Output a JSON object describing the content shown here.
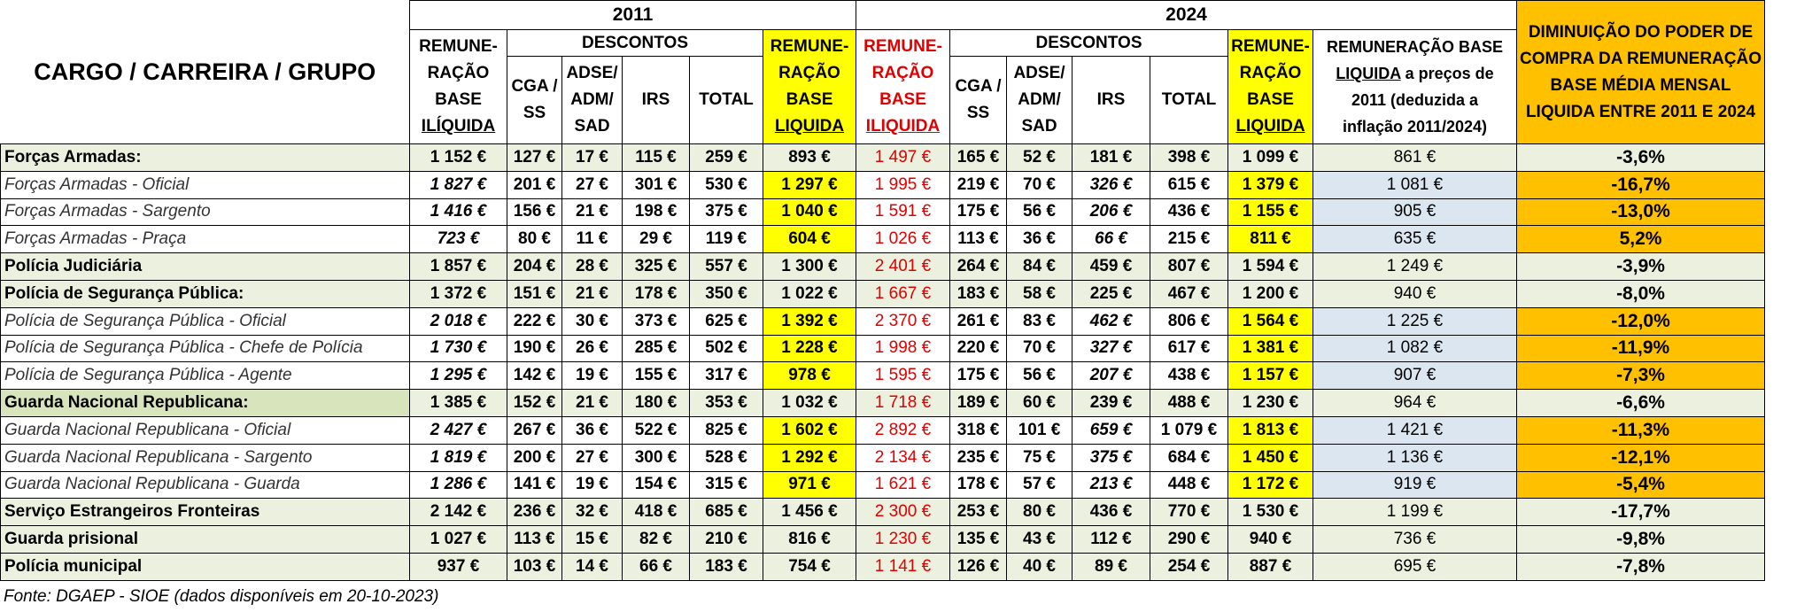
{
  "header": {
    "cargo": "CARGO / CARREIRA / GRUPO",
    "year_2011": "2011",
    "year_2024": "2024",
    "diminuicao": "DIMINUIÇÃO DO PODER DE COMPRA DA REMUNERAÇÃO BASE MÉDIA MENSAL LIQUIDA ENTRE 2011 E 2024",
    "remun_2011": [
      "REMUNE-",
      "RAÇÃO",
      "BASE",
      "ILÍQUIDA"
    ],
    "descontos_2011": "DESCONTOS",
    "cga_2011": [
      "CGA /",
      "SS"
    ],
    "adse_2011": [
      "ADSE/",
      "ADM/",
      "SAD"
    ],
    "irs_2011": "IRS",
    "total_2011": "TOTAL",
    "liq_2011": [
      "REMUNE-",
      "RAÇÃO",
      "BASE",
      "LIQUIDA"
    ],
    "remun_2024": [
      "REMUNE-",
      "RAÇÃO",
      "BASE",
      "ILIQUIDA"
    ],
    "descontos_2024": "DESCONTOS",
    "cga_2024": [
      "CGA /",
      "SS"
    ],
    "adse_2024": [
      "ADSE/",
      "ADM/",
      "SAD"
    ],
    "irs_2024": "IRS",
    "total_2024": "TOTAL",
    "liq_2024": [
      "REMUNE-",
      "RAÇÃO",
      "BASE",
      "LIQUIDA"
    ],
    "base_precos": [
      "REMUNERAÇÃO BASE",
      "LIQUIDA",
      " a preços de",
      "2011 (deduzida a",
      "inflação 2011/2024)"
    ]
  },
  "rows": [
    {
      "name": "Forças Armadas:",
      "type": "group",
      "v": [
        "1 152 €",
        "127 €",
        "17 €",
        "115 €",
        "259 €",
        "893 €",
        "1 497 €",
        "165 €",
        "52 €",
        "181 €",
        "398 €",
        "1 099 €",
        "861 €",
        "-3,6%"
      ]
    },
    {
      "name": "Forças Armadas - Oficial",
      "type": "sub",
      "v": [
        "1 827 €",
        "201 €",
        "27 €",
        "301 €",
        "530 €",
        "1 297 €",
        "1 995 €",
        "219 €",
        "70 €",
        "326 €",
        "615 €",
        "1 379 €",
        "1 081 €",
        "-16,7%"
      ]
    },
    {
      "name": "Forças Armadas - Sargento",
      "type": "sub",
      "v": [
        "1 416 €",
        "156 €",
        "21 €",
        "198 €",
        "375 €",
        "1 040 €",
        "1 591 €",
        "175 €",
        "56 €",
        "206 €",
        "436 €",
        "1 155 €",
        "905 €",
        "-13,0%"
      ]
    },
    {
      "name": "Forças Armadas - Praça",
      "type": "sub",
      "v": [
        "723 €",
        "80 €",
        "11 €",
        "29 €",
        "119 €",
        "604 €",
        "1 026 €",
        "113 €",
        "36 €",
        "66 €",
        "215 €",
        "811 €",
        "635 €",
        "5,2%"
      ]
    },
    {
      "name": "Polícia Judiciária",
      "type": "plain",
      "v": [
        "1 857 €",
        "204 €",
        "28 €",
        "325 €",
        "557 €",
        "1 300 €",
        "2 401 €",
        "264 €",
        "84 €",
        "459 €",
        "807 €",
        "1 594 €",
        "1 249 €",
        "-3,9%"
      ]
    },
    {
      "name": "Polícia de Segurança Pública:",
      "type": "group",
      "v": [
        "1 372 €",
        "151 €",
        "21 €",
        "178 €",
        "350 €",
        "1 022 €",
        "1 667 €",
        "183 €",
        "58 €",
        "225 €",
        "467 €",
        "1 200 €",
        "940 €",
        "-8,0%"
      ]
    },
    {
      "name": "Polícia de Segurança Pública - Oficial",
      "type": "sub",
      "v": [
        "2 018 €",
        "222 €",
        "30 €",
        "373 €",
        "625 €",
        "1 392 €",
        "2 370 €",
        "261 €",
        "83 €",
        "462 €",
        "806 €",
        "1 564 €",
        "1 225 €",
        "-12,0%"
      ]
    },
    {
      "name": "Polícia de Segurança Pública - Chefe de Polícia",
      "type": "sub",
      "v": [
        "1 730 €",
        "190 €",
        "26 €",
        "285 €",
        "502 €",
        "1 228 €",
        "1 998 €",
        "220 €",
        "70 €",
        "327 €",
        "617 €",
        "1 381 €",
        "1 082 €",
        "-11,9%"
      ]
    },
    {
      "name": "Polícia de Segurança Pública - Agente",
      "type": "sub",
      "v": [
        "1 295 €",
        "142 €",
        "19 €",
        "155 €",
        "317 €",
        "978 €",
        "1 595 €",
        "175 €",
        "56 €",
        "207 €",
        "438 €",
        "1 157 €",
        "907 €",
        "-7,3%"
      ]
    },
    {
      "name": "Guarda Nacional Republicana:",
      "type": "group",
      "v": [
        "1 385 €",
        "152 €",
        "21 €",
        "180 €",
        "353 €",
        "1 032 €",
        "1 718 €",
        "189 €",
        "60 €",
        "239 €",
        "488 €",
        "1 230 €",
        "964 €",
        "-6,6%"
      ]
    },
    {
      "name": "Guarda Nacional Republicana - Oficial",
      "type": "sub",
      "v": [
        "2 427 €",
        "267 €",
        "36 €",
        "522 €",
        "825 €",
        "1 602 €",
        "2 892 €",
        "318 €",
        "101 €",
        "659 €",
        "1 079 €",
        "1 813 €",
        "1 421 €",
        "-11,3%"
      ]
    },
    {
      "name": "Guarda Nacional Republicana - Sargento",
      "type": "sub",
      "v": [
        "1 819 €",
        "200 €",
        "27 €",
        "300 €",
        "528 €",
        "1 292 €",
        "2 134 €",
        "235 €",
        "75 €",
        "375 €",
        "684 €",
        "1 450 €",
        "1 136 €",
        "-12,1%"
      ]
    },
    {
      "name": "Guarda Nacional Republicana - Guarda",
      "type": "sub",
      "v": [
        "1 286 €",
        "141 €",
        "19 €",
        "154 €",
        "315 €",
        "971 €",
        "1 621 €",
        "178 €",
        "57 €",
        "213 €",
        "448 €",
        "1 172 €",
        "919 €",
        "-5,4%"
      ]
    },
    {
      "name": "Serviço Estrangeiros Fronteiras",
      "type": "plain",
      "v": [
        "2 142 €",
        "236 €",
        "32 €",
        "418 €",
        "685 €",
        "1 456 €",
        "2 300 €",
        "253 €",
        "80 €",
        "436 €",
        "770 €",
        "1 530 €",
        "1 199 €",
        "-17,7%"
      ]
    },
    {
      "name": "Guarda prisional",
      "type": "plain",
      "v": [
        "1 027 €",
        "113 €",
        "15 €",
        "82 €",
        "210 €",
        "816 €",
        "1 230 €",
        "135 €",
        "43 €",
        "112 €",
        "290 €",
        "940 €",
        "736 €",
        "-9,8%"
      ]
    },
    {
      "name": "Polícia municipal",
      "type": "plain",
      "v": [
        "937 €",
        "103 €",
        "14 €",
        "66 €",
        "183 €",
        "754 €",
        "1 141 €",
        "126 €",
        "40 €",
        "89 €",
        "254 €",
        "887 €",
        "695 €",
        "-7,8%"
      ]
    }
  ],
  "footer": "Fonte: DGAEP - SIOE (dados disponíveis em 20-10-2023)",
  "colors": {
    "yellow": "#ffff00",
    "orange": "#ffc000",
    "lightblue": "#dce6f1",
    "green": "#d8e4bc",
    "red": "#e00000"
  }
}
